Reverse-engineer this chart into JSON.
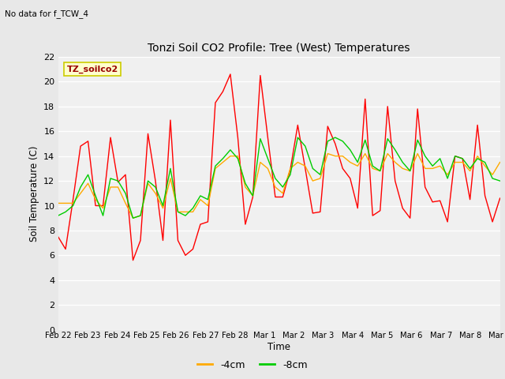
{
  "title": "Tonzi Soil CO2 Profile: Tree (West) Temperatures",
  "subtitle": "No data for f_TCW_4",
  "xlabel": "Time",
  "ylabel": "Soil Temperature (C)",
  "ylim": [
    0,
    22
  ],
  "yticks": [
    0,
    2,
    4,
    6,
    8,
    10,
    12,
    14,
    16,
    18,
    20,
    22
  ],
  "xtick_labels": [
    "Feb 22",
    "Feb 23",
    "Feb 24",
    "Feb 25",
    "Feb 26",
    "Feb 27",
    "Feb 28",
    "Mar 1",
    "Mar 2",
    "Mar 3",
    "Mar 4",
    "Mar 5",
    "Mar 6",
    "Mar 7",
    "Mar 8",
    "Mar 9"
  ],
  "legend_label": "TZ_soilco2",
  "legend_box_color": "#ffffcc",
  "legend_box_edge": "#cccc00",
  "line_2cm_color": "#ff0000",
  "line_4cm_color": "#ffaa00",
  "line_8cm_color": "#00cc00",
  "background_color": "#e8e8e8",
  "plot_bg_color": "#f0f0f0",
  "grid_color": "#ffffff",
  "t_2cm": [
    7.5,
    6.5,
    10.5,
    14.8,
    15.2,
    10.0,
    10.0,
    15.5,
    11.9,
    12.5,
    5.6,
    7.2,
    15.8,
    12.0,
    7.2,
    16.9,
    7.2,
    6.0,
    6.5,
    8.5,
    8.7,
    18.3,
    19.2,
    20.6,
    15.5,
    8.5,
    10.7,
    20.5,
    15.5,
    10.7,
    10.7,
    12.9,
    16.5,
    13.0,
    9.4,
    9.5,
    16.4,
    15.0,
    13.0,
    12.2,
    9.8,
    18.6,
    9.2,
    9.6,
    18.0,
    12.0,
    9.8,
    9.0,
    17.8,
    11.5,
    10.3,
    10.4,
    8.7,
    14.0,
    13.8,
    10.5,
    16.5,
    10.8,
    8.7,
    10.6
  ],
  "t_4cm": [
    10.2,
    10.2,
    10.2,
    11.0,
    11.8,
    10.5,
    9.8,
    11.5,
    11.5,
    10.2,
    9.0,
    9.2,
    11.8,
    11.0,
    9.8,
    12.2,
    9.5,
    9.5,
    9.5,
    10.5,
    10.0,
    13.0,
    13.5,
    14.0,
    14.0,
    11.5,
    10.8,
    13.5,
    13.0,
    11.5,
    11.0,
    13.0,
    13.5,
    13.2,
    12.0,
    12.2,
    14.2,
    14.0,
    14.0,
    13.5,
    13.2,
    14.2,
    13.0,
    12.8,
    14.2,
    13.5,
    13.0,
    12.8,
    14.2,
    13.0,
    13.0,
    13.2,
    12.5,
    13.5,
    13.5,
    12.8,
    14.0,
    13.2,
    12.5,
    13.5
  ],
  "t_8cm": [
    9.2,
    9.5,
    10.0,
    11.5,
    12.5,
    10.8,
    9.2,
    12.2,
    12.0,
    11.0,
    9.0,
    9.2,
    12.0,
    11.5,
    10.0,
    13.0,
    9.5,
    9.2,
    9.8,
    10.8,
    10.5,
    13.2,
    13.8,
    14.5,
    13.8,
    11.8,
    10.8,
    15.4,
    13.8,
    12.2,
    11.5,
    12.5,
    15.5,
    14.8,
    13.0,
    12.5,
    15.2,
    15.5,
    15.2,
    14.5,
    13.5,
    15.3,
    13.2,
    12.8,
    15.4,
    14.5,
    13.5,
    12.8,
    15.3,
    14.0,
    13.2,
    13.8,
    12.2,
    14.0,
    13.8,
    13.0,
    13.8,
    13.5,
    12.2,
    12.0
  ]
}
